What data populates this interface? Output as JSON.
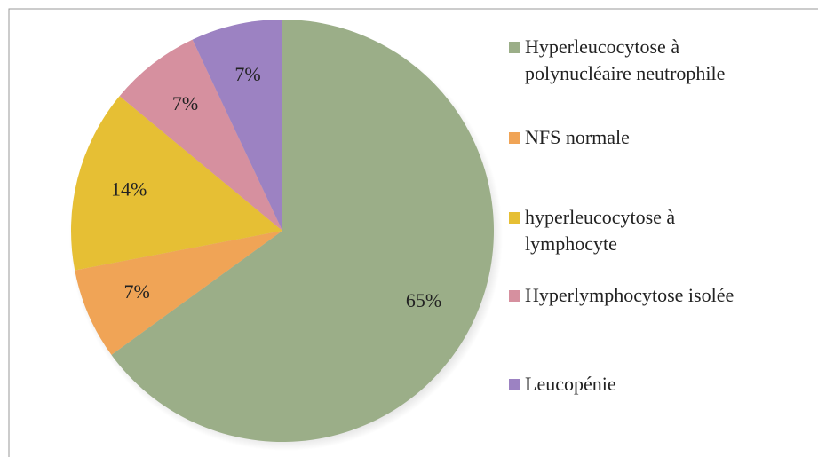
{
  "chart_data": {
    "type": "pie",
    "categories": [
      "Hyperleucocytose à polynucléaire neutrophile",
      "NFS normale",
      "hyperleucocytose à lymphocyte",
      "Hyperlymphocytose isolée",
      "Leucopénie"
    ],
    "values": [
      65,
      7,
      14,
      7,
      7
    ],
    "value_labels": [
      "65%",
      "7%",
      "14%",
      "7%",
      "7%"
    ],
    "colors": [
      "#9bae88",
      "#f0a456",
      "#e6bf34",
      "#d6909f",
      "#9c82c2"
    ]
  }
}
